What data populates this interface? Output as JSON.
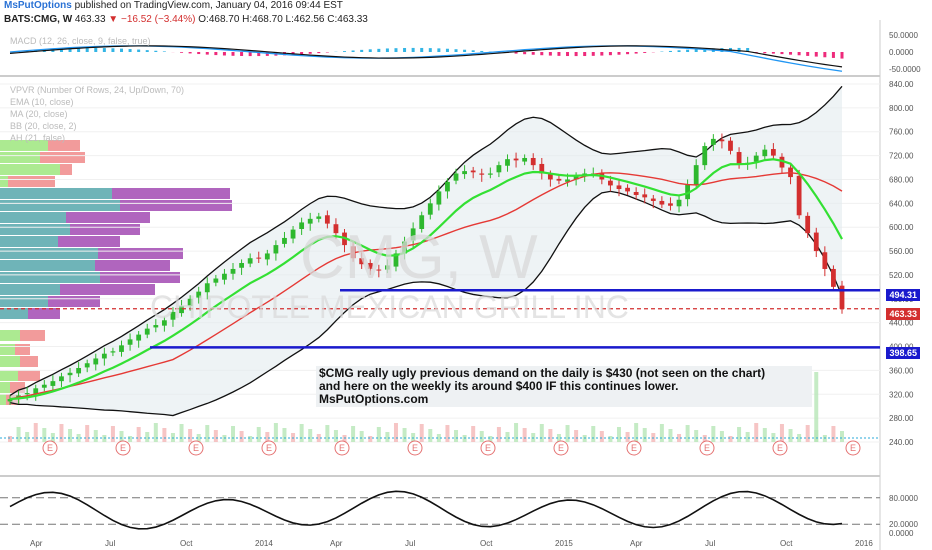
{
  "header": {
    "brand": "MsPutOptions",
    "published": "published on TradingView.com, January 04, 2016 09:44 EST",
    "symbol": "BATS:CMG, W",
    "last": "463.33",
    "change": "▼ −16.52 (−3.44%)",
    "ohlc": "O:468.70 H:468.70 L:462.56 C:463.33"
  },
  "indicators": {
    "macd": "MACD (12, 26, close, 9, false, true)",
    "vpvr": "VPVR (Number Of Rows, 24, Up/Down, 70)",
    "ema": "EMA (10, close)",
    "ma": "MA (20, close)",
    "bb": "BB (20, close, 2)",
    "ah": "AH (21, false)"
  },
  "watermark": {
    "ticker": "CMG, W",
    "company": "CHIPOTLE MEXICAN GRILL INC"
  },
  "note": {
    "line1": "$CMG really ugly previous demand on the daily is $430 (not seen on the chart)",
    "line2": "and here on the weekly its around $400 IF this continues lower.",
    "line3": "MsPutOptions.com"
  },
  "price_labels": {
    "upper_line": "494.31",
    "last": "463.33",
    "lower_line": "398.65"
  },
  "chart_data": {
    "type": "candlestick",
    "price_axis": {
      "ticks": [
        240,
        280,
        320,
        360,
        400,
        440,
        480,
        520,
        560,
        600,
        640,
        680,
        720,
        760,
        800,
        840
      ],
      "tick_labels": [
        "240.00",
        "280.00",
        "320.00",
        "360.00",
        "400.00",
        "440.00",
        "480.00",
        "520.00",
        "560.00",
        "600.00",
        "640.00",
        "680.00",
        "720.00",
        "760.00",
        "800.00",
        "840.00"
      ]
    },
    "macd_axis": {
      "ticks": [
        50,
        0,
        -50
      ],
      "tick_labels": [
        "50.0000",
        "0.0000",
        "-50.0000"
      ]
    },
    "stoch_axis": {
      "ticks": [
        80,
        20,
        0
      ],
      "tick_labels": [
        "80.0000",
        "20.0000",
        "0.0000"
      ]
    },
    "time_labels": [
      "Apr",
      "Jul",
      "Oct",
      "2014",
      "Apr",
      "Jul",
      "Oct",
      "2015",
      "Apr",
      "Jul",
      "Oct",
      "2016"
    ],
    "horizontal_lines": [
      494.31,
      398.65
    ],
    "last_price": 463.33,
    "earnings_marker": "E",
    "weekly_close": [
      312,
      318,
      322,
      330,
      336,
      342,
      350,
      356,
      364,
      372,
      380,
      388,
      392,
      402,
      412,
      420,
      430,
      436,
      444,
      458,
      468,
      480,
      492,
      506,
      514,
      522,
      530,
      540,
      548,
      548,
      556,
      570,
      582,
      596,
      608,
      614,
      618,
      606,
      590,
      570,
      548,
      538,
      530,
      528,
      536,
      556,
      576,
      598,
      620,
      640,
      660,
      676,
      690,
      694,
      692,
      688,
      690,
      704,
      714,
      712,
      716,
      704,
      690,
      680,
      678,
      680,
      686,
      690,
      690,
      680,
      670,
      664,
      660,
      654,
      650,
      644,
      638,
      636,
      646,
      672,
      704,
      736,
      748,
      744,
      728,
      706,
      708,
      720,
      730,
      720,
      700,
      684,
      620,
      590,
      560,
      530,
      500,
      463
    ]
  }
}
